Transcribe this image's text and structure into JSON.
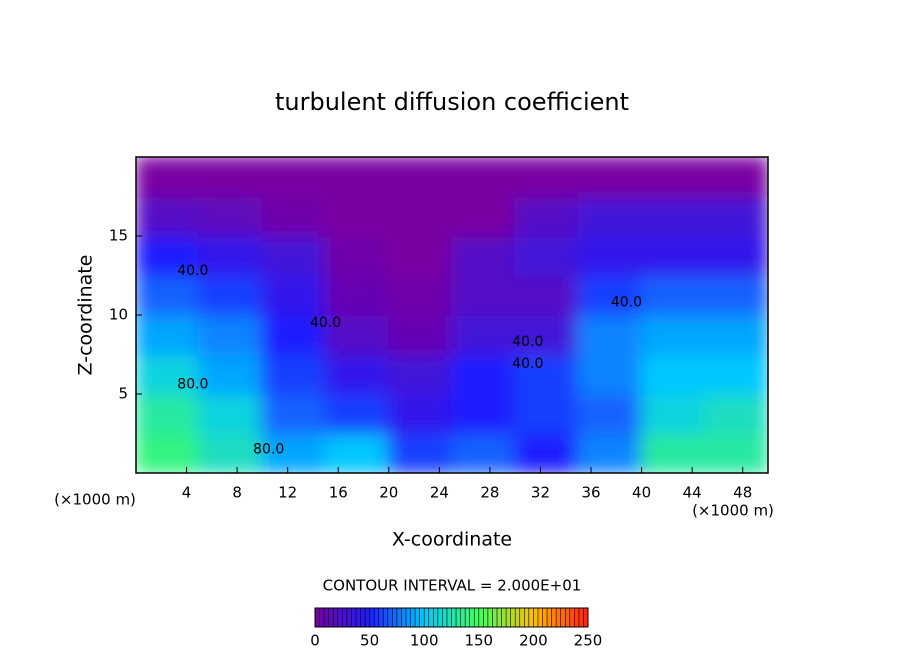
{
  "chart_data": {
    "type": "heatmap",
    "title": "turbulent diffusion coefficient",
    "x_label": "X-coordinate",
    "y_label": "Z-coordinate",
    "x_unit_label": "(×1000 m)",
    "subtitle": "CONTOUR INTERVAL = 2.000E+01",
    "xlim": [
      0,
      50
    ],
    "ylim": [
      0,
      20
    ],
    "xticks": [
      4,
      8,
      12,
      16,
      20,
      24,
      28,
      32,
      36,
      40,
      44,
      48
    ],
    "yticks": [
      5,
      10,
      15
    ],
    "xbins": [
      0,
      5,
      10,
      15,
      20,
      25,
      30,
      35,
      40,
      45,
      50
    ],
    "ybins": [
      0,
      2.5,
      5,
      7.5,
      10,
      12.5,
      15,
      17.5,
      20
    ],
    "z": [
      [
        140,
        120,
        90,
        100,
        60,
        70,
        50,
        80,
        130,
        130
      ],
      [
        130,
        110,
        70,
        60,
        40,
        50,
        60,
        70,
        110,
        120
      ],
      [
        110,
        90,
        60,
        40,
        30,
        50,
        60,
        80,
        100,
        100
      ],
      [
        90,
        80,
        50,
        20,
        10,
        30,
        30,
        80,
        90,
        90
      ],
      [
        70,
        60,
        40,
        10,
        5,
        20,
        20,
        60,
        70,
        70
      ],
      [
        50,
        40,
        30,
        5,
        0,
        20,
        30,
        40,
        40,
        40
      ],
      [
        20,
        15,
        5,
        0,
        0,
        0,
        20,
        30,
        30,
        30
      ],
      [
        0,
        0,
        0,
        0,
        0,
        0,
        0,
        0,
        0,
        0
      ]
    ],
    "zlim": [
      0,
      250
    ],
    "zticks": [
      0,
      50,
      100,
      150,
      200,
      250
    ],
    "colormap": [
      "#7800a0",
      "#1e1eff",
      "#00c8ff",
      "#40ff60",
      "#ffc000",
      "#ff2010"
    ],
    "annotations": [
      {
        "text": "40.0",
        "x": 4.5,
        "y": 12.8
      },
      {
        "text": "40.0",
        "x": 15,
        "y": 9.5
      },
      {
        "text": "40.0",
        "x": 31,
        "y": 8.3
      },
      {
        "text": "40.0",
        "x": 31,
        "y": 6.9
      },
      {
        "text": "40.0",
        "x": 38.8,
        "y": 10.8
      },
      {
        "text": "80.0",
        "x": 4.5,
        "y": 5.6
      },
      {
        "text": "80.0",
        "x": 10.5,
        "y": 1.5
      }
    ]
  }
}
